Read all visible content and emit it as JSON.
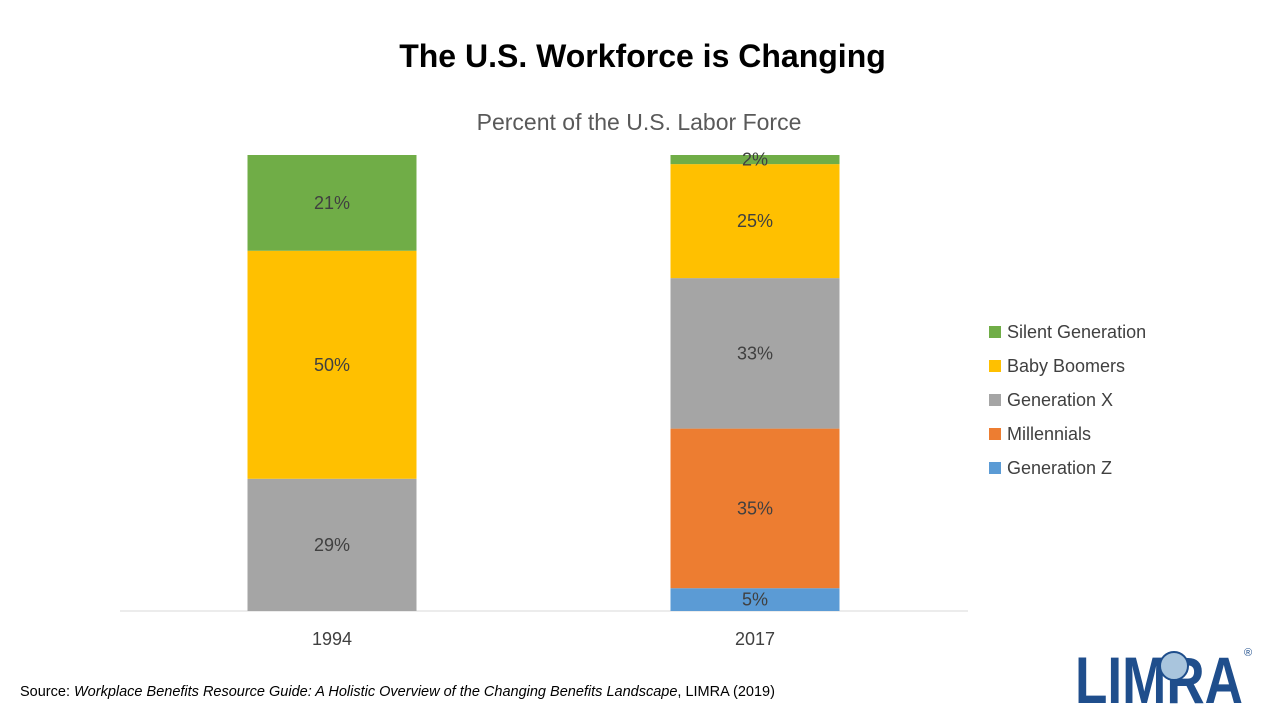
{
  "slide": {
    "title": "The U.S. Workforce is Changing"
  },
  "chart_data": {
    "type": "bar",
    "stacked": true,
    "title": "Percent of the U.S. Labor Force",
    "categories": [
      "1994",
      "2017"
    ],
    "series": [
      {
        "name": "Generation Z",
        "values": [
          null,
          5
        ],
        "labels": [
          "",
          "5%"
        ],
        "color": "#5B9BD5"
      },
      {
        "name": "Millennials",
        "values": [
          null,
          35
        ],
        "labels": [
          "",
          "35%"
        ],
        "color": "#ED7D31"
      },
      {
        "name": "Generation X",
        "values": [
          29,
          33
        ],
        "labels": [
          "29%",
          "33%"
        ],
        "color": "#A5A5A5"
      },
      {
        "name": "Baby Boomers",
        "values": [
          50,
          25
        ],
        "labels": [
          "50%",
          "25%"
        ],
        "color": "#FFC000"
      },
      {
        "name": "Silent Generation",
        "values": [
          21,
          2
        ],
        "labels": [
          "21%",
          "2%"
        ],
        "color": "#70AD47"
      }
    ],
    "legend_order": [
      "Silent Generation",
      "Baby Boomers",
      "Generation X",
      "Millennials",
      "Generation Z"
    ],
    "legend_position": "right",
    "ylim": [
      0,
      100
    ],
    "gridlines": false
  },
  "source": {
    "prefix": "Source: ",
    "title": "Workplace Benefits Resource Guide: A Holistic Overview of the Changing Benefits Landscape",
    "suffix": ", LIMRA (2019)"
  },
  "logo": {
    "text": "LIMRA",
    "icon": "limra-logo",
    "color": "#1F4E8C"
  }
}
